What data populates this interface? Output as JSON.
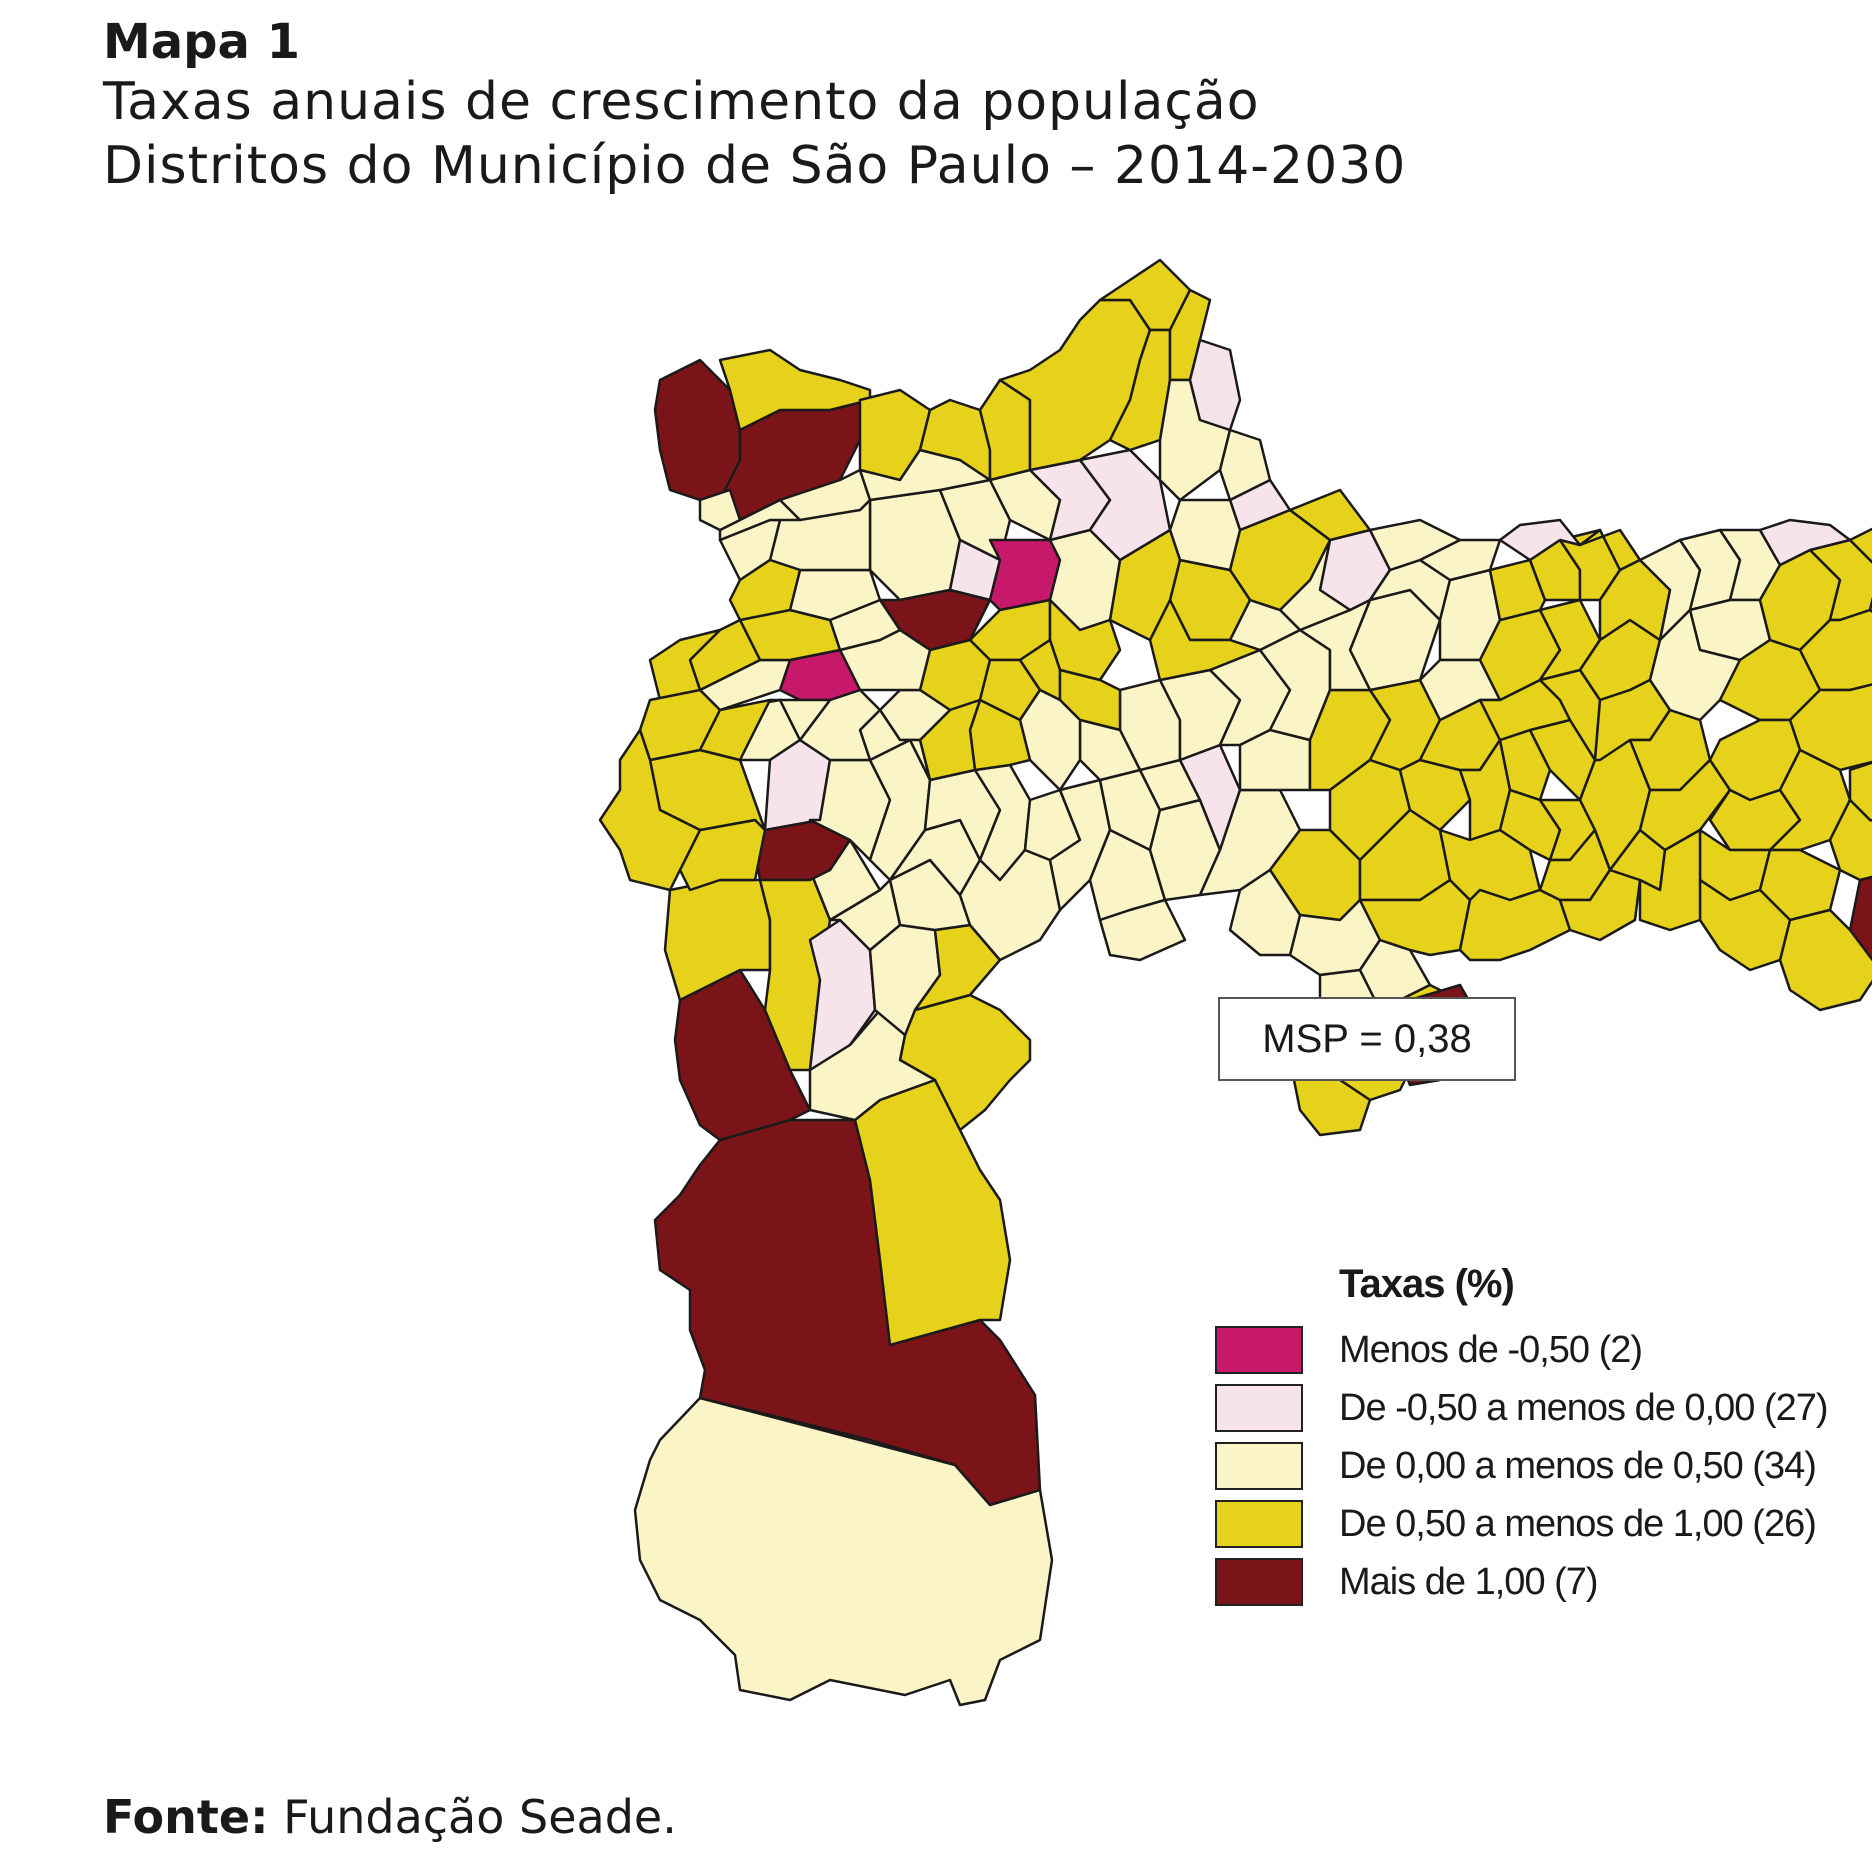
{
  "header": {
    "map_label": "Mapa 1",
    "subtitle_line1": "Taxas anuais de crescimento da população",
    "subtitle_line2": "Distritos do Município de São Paulo – 2014-2030"
  },
  "msp_box": "MSP = 0,38",
  "legend": {
    "title": "Taxas (%)",
    "items": [
      {
        "label": "Menos de -0,50 (2)",
        "color": "#c8186a"
      },
      {
        "label": "De -0,50 a menos de 0,00 (27)",
        "color": "#f7e4ea"
      },
      {
        "label": "De 0,00 a menos de 0,50 (34)",
        "color": "#fbf4c6"
      },
      {
        "label": "De 0,50 a menos de 1,00 (26)",
        "color": "#e6d21a"
      },
      {
        "label": "Mais de 1,00 (7)",
        "color": "#7a1418"
      }
    ]
  },
  "source": {
    "label": "Fonte:",
    "text": " Fundação Seade."
  }
}
